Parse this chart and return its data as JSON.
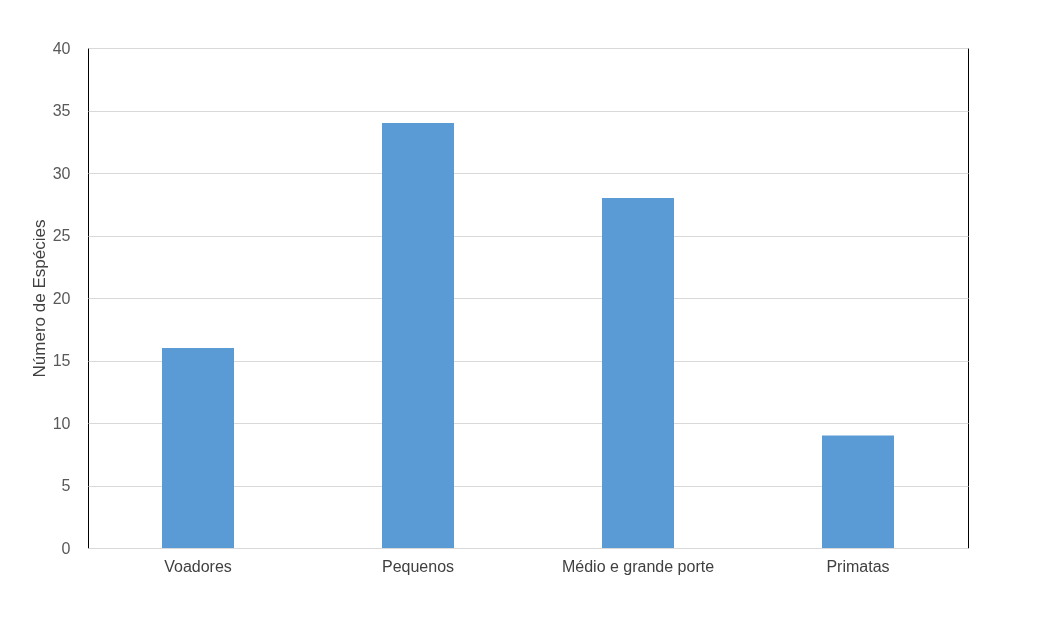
{
  "chart_data": {
    "type": "bar",
    "ylabel": "Número de Espécies",
    "categories": [
      "Voadores",
      "Pequenos",
      "Médio e grande porte",
      "Primatas"
    ],
    "values": [
      16,
      34,
      28,
      9
    ],
    "color": "#5b9bd5",
    "ylim": [
      0,
      40
    ],
    "yticks": [
      0,
      5,
      10,
      15,
      20,
      25,
      30,
      35,
      40
    ],
    "grid": "y"
  }
}
